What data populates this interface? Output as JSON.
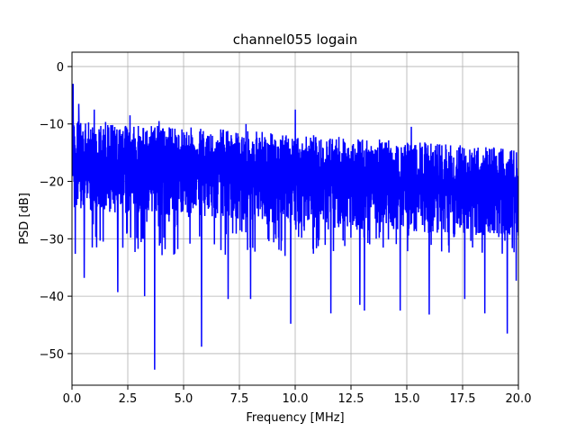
{
  "chart_data": {
    "type": "line",
    "title": "channel055 logain",
    "xlabel": "Frequency [MHz]",
    "ylabel": "PSD [dB]",
    "xlim": [
      0,
      20
    ],
    "ylim": [
      -55.5,
      2.5
    ],
    "xticks": [
      0,
      2.5,
      5,
      7.5,
      10,
      12.5,
      15,
      17.5,
      20
    ],
    "xtick_labels": [
      "0.0",
      "2.5",
      "5.0",
      "7.5",
      "10.0",
      "12.5",
      "15.0",
      "17.5",
      "20.0"
    ],
    "yticks": [
      0,
      -10,
      -20,
      -30,
      -40,
      -50
    ],
    "ytick_labels": [
      "0",
      "−10",
      "−20",
      "−30",
      "−40",
      "−50"
    ],
    "grid": true,
    "series": [
      {
        "color": "#0000ff",
        "num_points": 2048,
        "baseline_start_db": -16,
        "baseline_end_db": -21,
        "spread_db": 7.5,
        "noise_floor_db": -30,
        "peaks": [
          {
            "x": 0.05,
            "y": -3
          },
          {
            "x": 0.3,
            "y": -6.5
          },
          {
            "x": 1.0,
            "y": -7.5
          },
          {
            "x": 10.0,
            "y": -7.5
          },
          {
            "x": 2.6,
            "y": -8.5
          },
          {
            "x": 3.9,
            "y": -9.5
          },
          {
            "x": 7.8,
            "y": -10
          },
          {
            "x": 15.2,
            "y": -10.5
          },
          {
            "x": 19.9,
            "y": -11
          }
        ],
        "dips": [
          {
            "x": 3.7,
            "y": -52.8
          },
          {
            "x": 5.8,
            "y": -48.8
          },
          {
            "x": 19.5,
            "y": -46.5
          },
          {
            "x": 9.8,
            "y": -44.8
          },
          {
            "x": 11.6,
            "y": -43
          },
          {
            "x": 16.0,
            "y": -43.2
          },
          {
            "x": 18.5,
            "y": -43
          },
          {
            "x": 14.7,
            "y": -42.5
          },
          {
            "x": 13.1,
            "y": -42.5
          },
          {
            "x": 7.0,
            "y": -40.5
          },
          {
            "x": 0.55,
            "y": -36.8
          },
          {
            "x": 2.05,
            "y": -39.3
          },
          {
            "x": 3.25,
            "y": -40
          },
          {
            "x": 12.9,
            "y": -41.5
          },
          {
            "x": 17.6,
            "y": -40.5
          },
          {
            "x": 8.0,
            "y": -40.5
          },
          {
            "x": 19.9,
            "y": -37.3
          }
        ]
      }
    ]
  }
}
